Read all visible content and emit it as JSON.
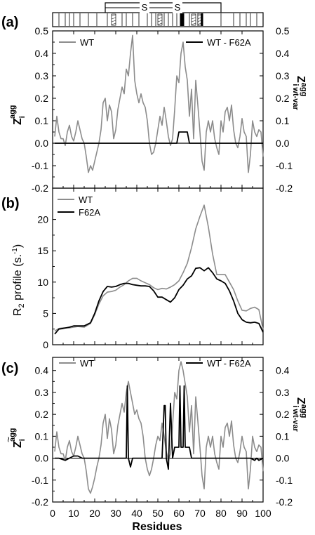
{
  "xaxis": {
    "label": "Residues",
    "range": [
      0,
      100
    ],
    "ticks": [
      0,
      10,
      20,
      30,
      40,
      50,
      60,
      70,
      80,
      90,
      100
    ]
  },
  "seq_bar": {
    "ss_label_1": "S",
    "ss_label_2": "S"
  },
  "chart_data": [
    {
      "type": "line",
      "panel": "(a)",
      "ylabel_left": "Z",
      "ylabel_left_sub": "i",
      "ylabel_left_sup": "agg",
      "ylabel_right": "Z",
      "ylabel_right_sub": "wt-var",
      "ylabel_right_sup": "agg",
      "ylabel_right_i": "i",
      "ylim": [
        -0.2,
        0.5
      ],
      "yticks": [
        -0.2,
        -0.1,
        0.0,
        0.1,
        0.2,
        0.3,
        0.4,
        0.5
      ],
      "ytick_labels": [
        "-0.2",
        "-0.1",
        "0.0",
        "0.1",
        "0.2",
        "0.3",
        "0.4",
        "0.5"
      ],
      "series": [
        {
          "name": "WT",
          "color": "#8c8c8c",
          "x": [
            1,
            2,
            3,
            4,
            5,
            6,
            7,
            8,
            9,
            10,
            11,
            12,
            13,
            14,
            15,
            16,
            17,
            18,
            19,
            20,
            21,
            22,
            23,
            24,
            25,
            26,
            27,
            28,
            29,
            30,
            31,
            32,
            33,
            34,
            35,
            36,
            37,
            38,
            39,
            40,
            41,
            42,
            43,
            44,
            45,
            46,
            47,
            48,
            49,
            50,
            51,
            52,
            53,
            54,
            55,
            56,
            57,
            58,
            59,
            60,
            61,
            62,
            63,
            64,
            65,
            66,
            67,
            68,
            69,
            70,
            71,
            72,
            73,
            74,
            75,
            76,
            77,
            78,
            79,
            80,
            81,
            82,
            83,
            84,
            85,
            86,
            87,
            88,
            89,
            90,
            91,
            92,
            93,
            94,
            95,
            96,
            97,
            98,
            99,
            100
          ],
          "y": [
            0.03,
            0.12,
            0.05,
            0.02,
            0.02,
            -0.01,
            0.05,
            0.08,
            0.03,
            0.01,
            0.05,
            0.1,
            0.06,
            0.02,
            0.0,
            -0.06,
            -0.13,
            -0.1,
            -0.12,
            -0.08,
            -0.04,
            0.0,
            0.06,
            0.18,
            0.2,
            0.1,
            0.17,
            0.14,
            0.02,
            0.06,
            0.15,
            0.2,
            0.25,
            0.22,
            0.33,
            0.3,
            0.4,
            0.48,
            0.28,
            0.22,
            0.18,
            0.22,
            0.18,
            0.16,
            0.1,
            0.0,
            -0.05,
            -0.04,
            0.0,
            0.06,
            0.12,
            0.08,
            0.16,
            0.1,
            0.03,
            -0.01,
            0.02,
            0.15,
            0.3,
            0.27,
            0.4,
            0.45,
            0.34,
            0.28,
            0.12,
            0.24,
            0.02,
            0.28,
            0.17,
            0.05,
            -0.08,
            -0.12,
            0.05,
            0.1,
            0.05,
            0.1,
            0.02,
            -0.02,
            -0.05,
            0.1,
            0.05,
            0.14,
            0.16,
            0.1,
            0.17,
            0.06,
            0.0,
            -0.02,
            0.03,
            0.11,
            0.05,
            0.03,
            -0.13,
            -0.05,
            0.1,
            0.05,
            0.03,
            0.06,
            0.05,
            -0.06
          ]
        },
        {
          "name": "WT - F62A",
          "color": "#000000",
          "x": [
            1,
            58,
            59,
            60,
            61,
            62,
            63,
            64,
            65,
            66,
            100
          ],
          "y": [
            0.0,
            0.0,
            0.0,
            0.05,
            0.05,
            0.05,
            0.05,
            0.05,
            0.0,
            0.0,
            0.0
          ]
        }
      ]
    },
    {
      "type": "line",
      "panel": "(b)",
      "ylabel": "R",
      "ylabel_sub": "2",
      "ylabel_rest": " profile (s.",
      "ylabel_sup": "-1",
      "ylabel_end": ")",
      "ylim": [
        0,
        25
      ],
      "yticks": [
        0,
        5,
        10,
        15,
        20
      ],
      "ytick_labels": [
        "0",
        "5",
        "10",
        "15",
        "20"
      ],
      "series": [
        {
          "name": "WT",
          "color": "#8c8c8c",
          "x": [
            1,
            3,
            5,
            8,
            10,
            12,
            15,
            18,
            20,
            22,
            24,
            26,
            28,
            30,
            32,
            34,
            36,
            38,
            40,
            42,
            44,
            46,
            48,
            50,
            52,
            54,
            56,
            58,
            60,
            62,
            64,
            66,
            68,
            70,
            72,
            74,
            76,
            78,
            80,
            82,
            84,
            86,
            88,
            90,
            92,
            94,
            96,
            98,
            100
          ],
          "y": [
            2.2,
            2.6,
            2.7,
            2.7,
            2.8,
            2.9,
            2.8,
            3.4,
            4.8,
            6.5,
            7.8,
            8.4,
            8.5,
            8.7,
            9.2,
            9.6,
            10.2,
            10.6,
            10.6,
            10.2,
            9.9,
            9.6,
            9.1,
            8.8,
            9.0,
            8.9,
            9.2,
            9.6,
            10.2,
            11.5,
            13.0,
            15.5,
            18.5,
            20.5,
            22.3,
            18.8,
            14.5,
            11.2,
            11.2,
            11.2,
            10.0,
            8.8,
            7.0,
            5.5,
            5.4,
            5.8,
            6.0,
            5.6,
            2.4
          ]
        },
        {
          "name": "F62A",
          "color": "#000000",
          "x": [
            1,
            3,
            5,
            8,
            10,
            12,
            15,
            18,
            20,
            22,
            24,
            26,
            28,
            30,
            32,
            34,
            36,
            38,
            40,
            42,
            44,
            46,
            48,
            50,
            52,
            54,
            56,
            58,
            60,
            62,
            64,
            66,
            68,
            70,
            72,
            74,
            76,
            78,
            80,
            82,
            84,
            86,
            88,
            90,
            92,
            94,
            96,
            98,
            100
          ],
          "y": [
            1.7,
            2.5,
            2.6,
            2.8,
            3.0,
            3.0,
            3.0,
            3.5,
            5.0,
            7.0,
            8.5,
            9.3,
            9.2,
            9.3,
            9.6,
            9.8,
            9.8,
            9.6,
            9.5,
            9.4,
            9.4,
            9.3,
            8.6,
            7.6,
            7.6,
            7.2,
            6.8,
            7.5,
            8.8,
            9.5,
            10.5,
            11.0,
            12.2,
            12.3,
            11.8,
            12.3,
            11.5,
            10.5,
            10.2,
            9.8,
            8.6,
            7.0,
            5.0,
            4.0,
            3.6,
            3.5,
            3.6,
            3.4,
            2.0
          ]
        }
      ]
    },
    {
      "type": "line",
      "panel": "(c)",
      "ylabel_left": "Z",
      "ylabel_left_tilde": "~",
      "ylabel_left_sub": "i",
      "ylabel_left_sup": "agg",
      "ylabel_right": "Z",
      "ylabel_right_sub": "wt-var",
      "ylabel_right_sup": "agg",
      "ylabel_right_i": "i",
      "ylim": [
        -0.2,
        0.46
      ],
      "yticks": [
        -0.2,
        -0.1,
        0.0,
        0.1,
        0.2,
        0.3,
        0.4
      ],
      "ytick_labels": [
        "-0.2",
        "-0.1",
        "0.0",
        "0.1",
        "0.2",
        "0.3",
        "0.4"
      ],
      "series": [
        {
          "name": "WT",
          "color": "#8c8c8c",
          "x": [
            1,
            2,
            3,
            4,
            5,
            6,
            7,
            8,
            9,
            10,
            11,
            12,
            13,
            14,
            15,
            16,
            17,
            18,
            19,
            20,
            21,
            22,
            23,
            24,
            25,
            26,
            27,
            28,
            29,
            30,
            31,
            32,
            33,
            34,
            35,
            36,
            37,
            38,
            39,
            40,
            41,
            42,
            43,
            44,
            45,
            46,
            47,
            48,
            49,
            50,
            51,
            52,
            53,
            54,
            55,
            56,
            57,
            58,
            59,
            60,
            61,
            62,
            63,
            64,
            65,
            66,
            67,
            68,
            69,
            70,
            71,
            72,
            73,
            74,
            75,
            76,
            77,
            78,
            79,
            80,
            81,
            82,
            83,
            84,
            85,
            86,
            87,
            88,
            89,
            90,
            91,
            92,
            93,
            94,
            95,
            96,
            97,
            98,
            99,
            100
          ],
          "y": [
            0.03,
            0.12,
            0.05,
            0.02,
            0.02,
            -0.01,
            0.05,
            0.08,
            0.03,
            0.01,
            0.05,
            0.1,
            0.06,
            0.02,
            0.0,
            -0.06,
            -0.14,
            -0.16,
            -0.13,
            -0.09,
            -0.04,
            0.0,
            0.06,
            0.16,
            0.2,
            0.09,
            0.18,
            0.13,
            0.02,
            0.06,
            0.15,
            0.2,
            0.25,
            0.21,
            0.3,
            0.35,
            0.3,
            0.25,
            0.2,
            0.22,
            0.18,
            0.16,
            0.1,
            0.0,
            -0.05,
            -0.08,
            -0.05,
            0.0,
            0.06,
            0.1,
            0.08,
            0.16,
            0.1,
            0.03,
            -0.01,
            0.02,
            0.15,
            0.3,
            0.27,
            0.4,
            0.44,
            0.4,
            0.34,
            0.28,
            0.12,
            0.24,
            0.02,
            0.28,
            0.17,
            0.05,
            -0.08,
            -0.14,
            0.05,
            0.1,
            0.05,
            0.1,
            0.02,
            -0.02,
            -0.05,
            0.1,
            0.05,
            0.14,
            0.16,
            0.1,
            0.17,
            0.06,
            0.0,
            -0.02,
            0.03,
            0.1,
            0.05,
            0.03,
            -0.14,
            -0.05,
            0.1,
            0.05,
            0.03,
            0.06,
            0.05,
            -0.06
          ]
        },
        {
          "name": "WT - F62A",
          "color": "#000000",
          "x": [
            1,
            3,
            6,
            8,
            10,
            12,
            14,
            20,
            30,
            34,
            35,
            35.5,
            36,
            37,
            38,
            45,
            52,
            53,
            53.5,
            54,
            55,
            56,
            57,
            58,
            59,
            60,
            60.5,
            61,
            62,
            62.5,
            63,
            64,
            65,
            66,
            70,
            80,
            90,
            94,
            96,
            97,
            98,
            100
          ],
          "y": [
            0.0,
            0.0,
            -0.01,
            0.0,
            0.01,
            0.01,
            0.0,
            0.0,
            0.0,
            0.0,
            0.0,
            0.33,
            0.0,
            -0.04,
            0.0,
            0.0,
            0.0,
            0.24,
            0.24,
            0.0,
            -0.05,
            0.25,
            0.0,
            0.05,
            0.05,
            0.05,
            0.33,
            0.05,
            0.05,
            0.33,
            0.05,
            0.05,
            0.05,
            0.0,
            0.0,
            0.0,
            0.0,
            0.0,
            -0.01,
            0.0,
            -0.01,
            0.0
          ]
        }
      ]
    }
  ]
}
